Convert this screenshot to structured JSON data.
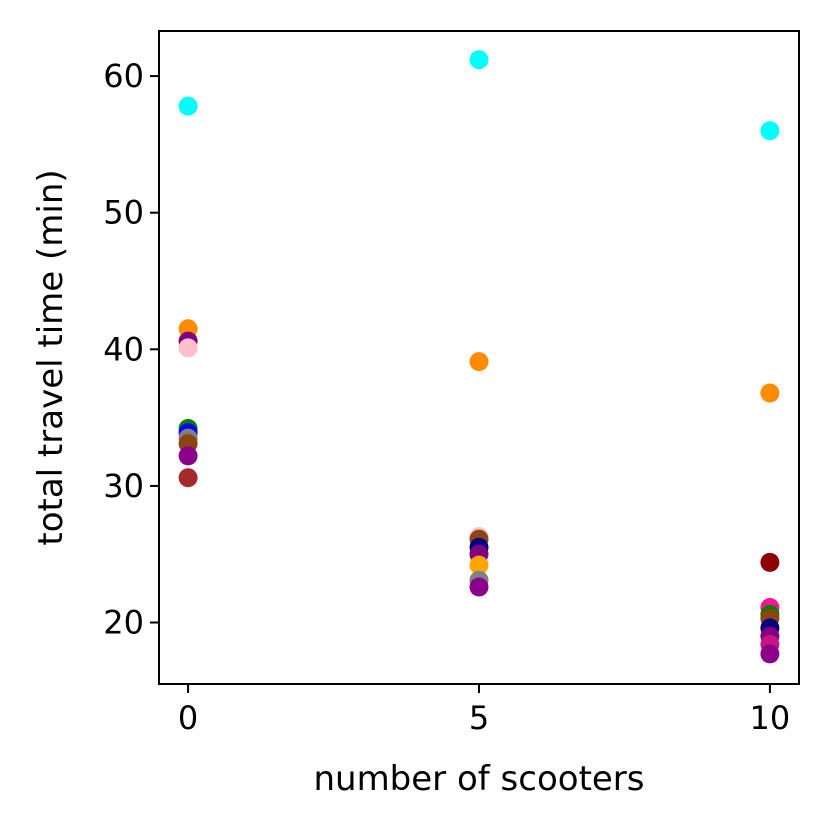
{
  "chart_data": {
    "type": "scatter",
    "title": "",
    "xlabel": "number of scooters",
    "ylabel": "total travel time (min)",
    "xlim": [
      -0.5,
      10.5
    ],
    "ylim": [
      15.5,
      63.3
    ],
    "xticks": [
      0,
      5,
      10
    ],
    "yticks": [
      20,
      30,
      40,
      50,
      60
    ],
    "grid": false,
    "legend": "none",
    "points": [
      {
        "x": 0,
        "y": 57.8,
        "color": "#00ffff"
      },
      {
        "x": 0,
        "y": 41.5,
        "color": "#ff8c00"
      },
      {
        "x": 0,
        "y": 40.6,
        "color": "#800080"
      },
      {
        "x": 0,
        "y": 40.1,
        "color": "#ffc0cb"
      },
      {
        "x": 0,
        "y": 34.2,
        "color": "#008000"
      },
      {
        "x": 0,
        "y": 33.9,
        "color": "#0000ff"
      },
      {
        "x": 0,
        "y": 33.5,
        "color": "#808080"
      },
      {
        "x": 0,
        "y": 33.1,
        "color": "#8b4513"
      },
      {
        "x": 0,
        "y": 32.2,
        "color": "#8b008b"
      },
      {
        "x": 0,
        "y": 30.6,
        "color": "#a52a2a"
      },
      {
        "x": 5,
        "y": 61.2,
        "color": "#00ffff"
      },
      {
        "x": 5,
        "y": 39.1,
        "color": "#ff8c00"
      },
      {
        "x": 5,
        "y": 26.3,
        "color": "#ffc0cb"
      },
      {
        "x": 5,
        "y": 26.1,
        "color": "#8b4513"
      },
      {
        "x": 5,
        "y": 25.5,
        "color": "#000080"
      },
      {
        "x": 5,
        "y": 25.0,
        "color": "#800080"
      },
      {
        "x": 5,
        "y": 24.2,
        "color": "#ffa500"
      },
      {
        "x": 5,
        "y": 23.1,
        "color": "#808080"
      },
      {
        "x": 5,
        "y": 22.6,
        "color": "#8b008b"
      },
      {
        "x": 10,
        "y": 56.0,
        "color": "#00ffff"
      },
      {
        "x": 10,
        "y": 36.8,
        "color": "#ff8c00"
      },
      {
        "x": 10,
        "y": 24.4,
        "color": "#8b0000"
      },
      {
        "x": 10,
        "y": 21.1,
        "color": "#ff1493"
      },
      {
        "x": 10,
        "y": 20.6,
        "color": "#008000"
      },
      {
        "x": 10,
        "y": 20.3,
        "color": "#8b4513"
      },
      {
        "x": 10,
        "y": 19.6,
        "color": "#000080"
      },
      {
        "x": 10,
        "y": 19.0,
        "color": "#800080"
      },
      {
        "x": 10,
        "y": 18.4,
        "color": "#c71585"
      },
      {
        "x": 10,
        "y": 17.7,
        "color": "#8b008b"
      }
    ]
  }
}
